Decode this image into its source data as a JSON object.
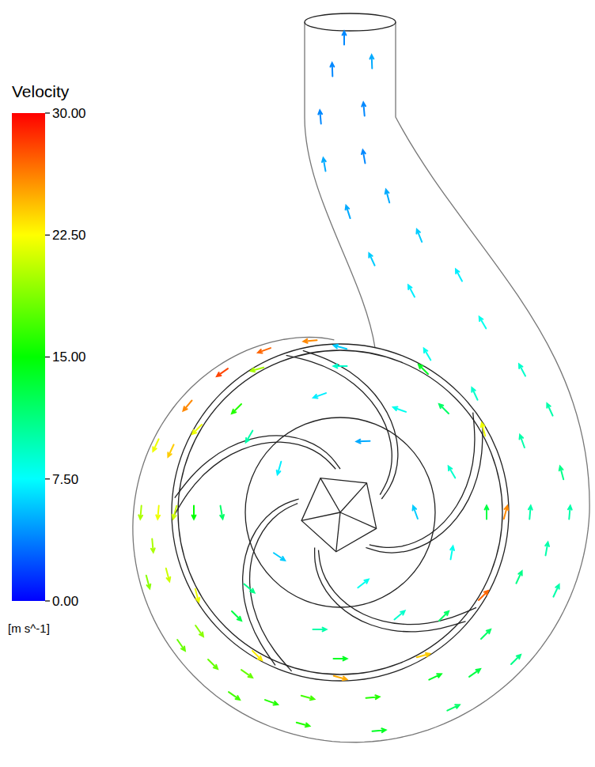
{
  "chart_data": {
    "type": "vector_field",
    "colorbar": {
      "title": "Velocity",
      "label": "[m s^-1]",
      "lim": [
        0,
        30
      ],
      "ticks": [
        {
          "value": 0,
          "label": "0.00"
        },
        {
          "value": 7.5,
          "label": "7.50"
        },
        {
          "value": 15,
          "label": "15.00"
        },
        {
          "value": 22.5,
          "label": "22.50"
        },
        {
          "value": 30,
          "label": "30.00"
        }
      ]
    },
    "xlim": [
      -280,
      315
    ],
    "ylim": [
      -315,
      640
    ],
    "tick_labels": false,
    "x": [
      -38,
      -96,
      -149,
      -193,
      -214,
      -233,
      -230,
      -252,
      -218,
      -243,
      -178,
      -201,
      -118,
      -134,
      -41,
      -47,
      41,
      49,
      120,
      143,
      184,
      222,
      226,
      273,
      240,
      290,
      -87,
      170,
      261,
      -237,
      -161,
      209,
      181,
      105,
      0,
      -105,
      -181,
      -209,
      -181,
      -105,
      0,
      105,
      181,
      95,
      29,
      -77,
      -77,
      29,
      141,
      75,
      -26,
      -115,
      -150,
      -115,
      -26,
      75,
      141,
      185,
      131,
      0,
      -131,
      -185,
      -131,
      0,
      131,
      280,
      230,
      265,
      170,
      230,
      110,
      180,
      90,
      150,
      40,
      100,
      10,
      60,
      -20,
      30,
      -25,
      30,
      -10,
      40,
      5
    ],
    "y": [
      217,
      205,
      177,
      135,
      78,
      85,
      0,
      0,
      -79,
      -88,
      -150,
      -168,
      -204,
      -232,
      -234,
      -268,
      -234,
      -276,
      -208,
      -247,
      -154,
      -186,
      -82,
      -99,
      0,
      0,
      -240,
      -203,
      -46,
      -42,
      -192,
      0,
      105,
      181,
      209,
      181,
      105,
      0,
      -105,
      -181,
      -209,
      -181,
      -105,
      0,
      90,
      56,
      -56,
      -90,
      51,
      130,
      148,
      96,
      0,
      -96,
      -148,
      -130,
      -51,
      0,
      131,
      185,
      131,
      0,
      -131,
      -185,
      -131,
      50,
      90,
      130,
      150,
      180,
      200,
      240,
      280,
      300,
      320,
      350,
      380,
      400,
      440,
      450,
      500,
      510,
      560,
      570,
      600
    ],
    "speed": [
      26,
      27,
      28,
      26,
      24,
      22,
      22,
      20,
      21,
      19,
      19,
      18,
      18,
      17,
      17,
      16,
      16,
      14,
      14,
      12,
      12,
      11,
      11,
      10,
      10,
      10,
      16,
      13,
      10,
      20,
      18,
      26,
      22,
      14,
      6,
      20,
      22,
      21,
      22,
      23,
      25,
      24,
      27,
      6,
      5,
      7,
      6,
      8,
      9,
      8,
      7,
      10,
      12,
      11,
      10,
      9,
      8,
      13,
      12,
      9,
      16,
      15,
      13,
      14,
      12,
      11,
      10,
      10,
      9,
      9,
      8,
      8,
      7,
      7,
      6,
      6,
      5,
      5,
      5,
      4,
      4,
      4,
      4,
      5,
      4
    ],
    "angle": [
      185,
      200,
      215,
      230,
      245,
      245,
      265,
      265,
      285,
      285,
      305,
      305,
      325,
      325,
      345,
      345,
      5,
      5,
      25,
      25,
      45,
      45,
      65,
      65,
      85,
      85,
      340,
      35,
      80,
      275,
      315,
      75,
      105,
      135,
      165,
      195,
      225,
      255,
      285,
      315,
      345,
      15,
      45,
      110,
      182,
      254,
      326,
      38,
      120,
      160,
      200,
      240,
      280,
      320,
      0,
      40,
      80,
      90,
      135,
      180,
      225,
      270,
      315,
      0,
      45,
      105,
      110,
      115,
      115,
      118,
      120,
      120,
      118,
      118,
      115,
      112,
      108,
      105,
      100,
      100,
      95,
      95,
      92,
      92,
      90
    ]
  }
}
